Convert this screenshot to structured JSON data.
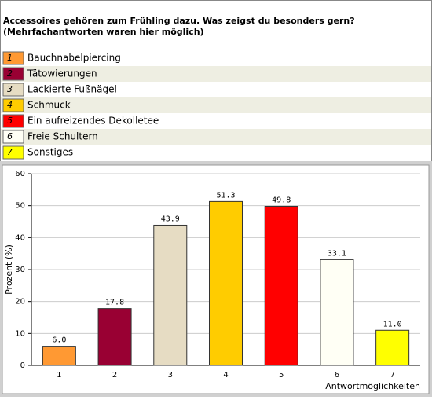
{
  "chart_data": {
    "type": "bar",
    "title": "Accessoires gehören zum Frühling dazu. Was zeigst du besonders gern?",
    "subtitle": "(Mehrfachantworten waren hier möglich)",
    "categories": [
      "1",
      "2",
      "3",
      "4",
      "5",
      "6",
      "7"
    ],
    "legend_labels": [
      "Bauchnabelpiercing",
      "Tätowierungen",
      "Lackierte Fußnägel",
      "Schmuck",
      "Ein aufreizendes Dekolletee",
      "Freie Schultern",
      "Sonstiges"
    ],
    "colors": [
      "#ff9933",
      "#990033",
      "#e6dcc3",
      "#ffcc00",
      "#ff0000",
      "#fffff5",
      "#ffff00"
    ],
    "values": [
      6.0,
      17.8,
      43.9,
      51.3,
      49.8,
      33.1,
      11.0
    ],
    "value_labels": [
      "6.0",
      "17.8",
      "43.9",
      "51.3",
      "49.8",
      "33.1",
      "11.0"
    ],
    "ylabel": "Prozent (%)",
    "xlabel": "Antwortmöglichkeiten",
    "ylim": [
      0,
      60
    ],
    "yticks": [
      0,
      10,
      20,
      30,
      40,
      50,
      60
    ],
    "grid": true
  }
}
